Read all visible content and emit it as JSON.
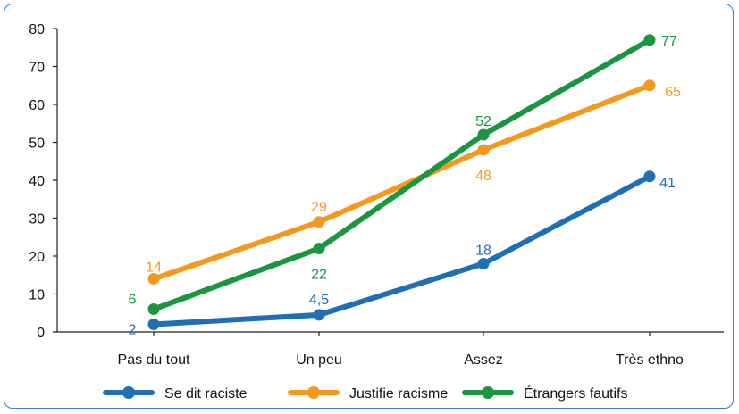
{
  "chart_data": {
    "type": "line",
    "categories": [
      "Pas du tout",
      "Un peu",
      "Assez",
      "Très ethno"
    ],
    "ylim": [
      0,
      80
    ],
    "yticks": [
      0,
      10,
      20,
      30,
      40,
      50,
      60,
      70,
      80
    ],
    "grid": false,
    "legend_position": "bottom",
    "series": [
      {
        "name": "Se dit raciste",
        "color": "#1f6fb5",
        "values": [
          2,
          4.5,
          18,
          41
        ],
        "labels": [
          "2",
          "4,5",
          "18",
          "41"
        ]
      },
      {
        "name": "Justifie racisme",
        "color": "#f39a1e",
        "values": [
          14,
          29,
          48,
          65
        ],
        "labels": [
          "14",
          "29",
          "48",
          "65"
        ]
      },
      {
        "name": "Étrangers fautifs",
        "color": "#1a9641",
        "values": [
          6,
          22,
          52,
          77
        ],
        "labels": [
          "6",
          "22",
          "52",
          "77"
        ]
      }
    ]
  }
}
